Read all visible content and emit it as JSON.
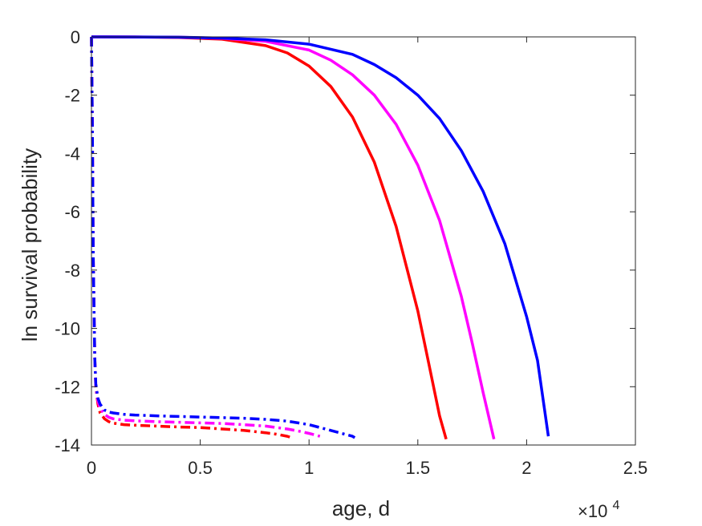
{
  "chart_data": {
    "type": "line",
    "title": "",
    "xlabel": "age, d",
    "ylabel": "ln survival probability",
    "x_multiplier_label": {
      "base": "×10",
      "exponent": "4"
    },
    "xlim": [
      0,
      25000
    ],
    "ylim": [
      -14,
      0
    ],
    "xticks": [
      0,
      5000,
      10000,
      15000,
      20000,
      25000
    ],
    "xtick_labels": [
      "0",
      "0.5",
      "1",
      "1.5",
      "2",
      "2.5"
    ],
    "yticks": [
      0,
      -2,
      -4,
      -6,
      -8,
      -10,
      -12,
      -14
    ],
    "ytick_labels": [
      "0",
      "-2",
      "-4",
      "-6",
      "-8",
      "-10",
      "-12",
      "-14"
    ],
    "grid": false,
    "box": true,
    "series": [
      {
        "color": "#ff0000",
        "dash": "solid",
        "x": [
          0,
          2000,
          4000,
          6000,
          8000,
          9000,
          10000,
          11000,
          12000,
          13000,
          14000,
          15000,
          15500,
          16000,
          16300
        ],
        "y": [
          0,
          -0.003,
          -0.02,
          -0.08,
          -0.3,
          -0.55,
          -1.0,
          -1.7,
          -2.75,
          -4.3,
          -6.5,
          -9.4,
          -11.2,
          -13.0,
          -13.8
        ]
      },
      {
        "color": "#ff00ff",
        "dash": "solid",
        "x": [
          0,
          2000,
          4000,
          6000,
          8000,
          10000,
          11000,
          12000,
          13000,
          14000,
          15000,
          16000,
          17000,
          17500,
          18000,
          18500
        ],
        "y": [
          0,
          -0.002,
          -0.01,
          -0.05,
          -0.15,
          -0.45,
          -0.8,
          -1.3,
          -2.0,
          -3.0,
          -4.4,
          -6.3,
          -8.9,
          -10.5,
          -12.2,
          -13.8
        ]
      },
      {
        "color": "#0000ff",
        "dash": "solid",
        "x": [
          0,
          2000,
          4000,
          6000,
          8000,
          10000,
          12000,
          13000,
          14000,
          15000,
          16000,
          17000,
          18000,
          19000,
          20000,
          20500,
          21000
        ],
        "y": [
          0,
          -0.002,
          -0.01,
          -0.04,
          -0.1,
          -0.25,
          -0.6,
          -0.95,
          -1.4,
          -2.0,
          -2.8,
          -3.9,
          -5.3,
          -7.1,
          -9.6,
          -11.1,
          -13.7
        ]
      },
      {
        "color": "#ff0000",
        "dash": "dashdot",
        "x": [
          0,
          40,
          80,
          150,
          200,
          300,
          400,
          600,
          800,
          1000,
          1500,
          2000,
          3000,
          4000,
          5000,
          6000,
          7000,
          8000,
          8500,
          9000,
          9200
        ],
        "y": [
          0,
          -3,
          -7.5,
          -11,
          -12,
          -12.6,
          -12.9,
          -13.1,
          -13.2,
          -13.25,
          -13.3,
          -13.32,
          -13.35,
          -13.38,
          -13.4,
          -13.45,
          -13.5,
          -13.58,
          -13.63,
          -13.7,
          -13.75
        ]
      },
      {
        "color": "#ff00ff",
        "dash": "dashdot",
        "x": [
          0,
          40,
          80,
          150,
          200,
          300,
          400,
          600,
          800,
          1000,
          1500,
          2000,
          3000,
          4000,
          5000,
          6000,
          7000,
          8000,
          9000,
          9500,
          10000,
          10500
        ],
        "y": [
          0,
          -3,
          -7.5,
          -11,
          -12,
          -12.5,
          -12.75,
          -12.95,
          -13.05,
          -13.1,
          -13.15,
          -13.17,
          -13.2,
          -13.22,
          -13.24,
          -13.26,
          -13.3,
          -13.35,
          -13.45,
          -13.52,
          -13.6,
          -13.7
        ]
      },
      {
        "color": "#0000ff",
        "dash": "dashdot",
        "x": [
          0,
          40,
          80,
          150,
          200,
          300,
          400,
          600,
          800,
          1000,
          1500,
          2000,
          3000,
          4000,
          5000,
          6000,
          7000,
          8000,
          9000,
          10000,
          10500,
          11000,
          11500,
          12000,
          12100
        ],
        "y": [
          0,
          -3,
          -7.5,
          -11,
          -11.9,
          -12.4,
          -12.6,
          -12.8,
          -12.87,
          -12.9,
          -12.95,
          -12.97,
          -13.0,
          -13.02,
          -13.04,
          -13.06,
          -13.08,
          -13.12,
          -13.18,
          -13.3,
          -13.4,
          -13.5,
          -13.6,
          -13.7,
          -13.75
        ]
      }
    ]
  }
}
